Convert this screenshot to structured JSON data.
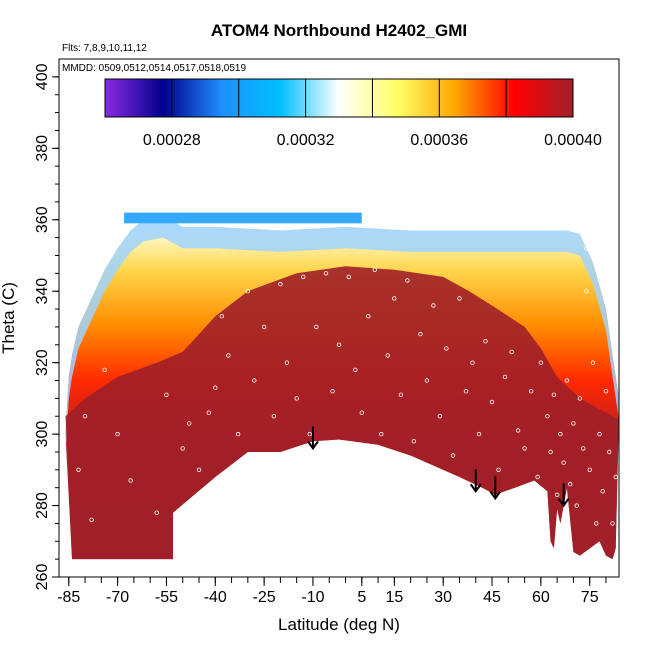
{
  "chart_data": {
    "type": "heatmap",
    "title": "ATOM4 Northbound H2402_GMI",
    "subtitle_lines": [
      "Flts: 7,8,9,10,11,12",
      "MMDD: 0509,0512,0514,0517,0518,0519"
    ],
    "xlabel": "Latitude (deg N)",
    "ylabel": "Theta (C)",
    "xlim": [
      -88,
      84
    ],
    "ylim": [
      260,
      405
    ],
    "x_ticks": [
      -85,
      -70,
      -55,
      -40,
      -25,
      -10,
      5,
      15,
      30,
      45,
      60,
      75
    ],
    "y_ticks": [
      260,
      280,
      300,
      320,
      340,
      360,
      380,
      400
    ],
    "colorbar": {
      "range": [
        0.00026,
        0.0004
      ],
      "tick_values": [
        0.00028,
        0.00032,
        0.00036,
        0.0004
      ],
      "tick_labels": [
        "0.00028",
        "0.00032",
        "0.00036",
        "0.00040"
      ],
      "colors": [
        "#8a2be2",
        "#00008b",
        "#1e90ff",
        "#00bfff",
        "#ffffff",
        "#ffff66",
        "#ffa500",
        "#ff0000",
        "#a0202a"
      ]
    },
    "field_top_theta": [
      [
        -86,
        300
      ],
      [
        -85,
        316
      ],
      [
        -84,
        322
      ],
      [
        -82,
        330
      ],
      [
        -78,
        338
      ],
      [
        -74,
        346
      ],
      [
        -70,
        352
      ],
      [
        -66,
        357
      ],
      [
        -62,
        360
      ],
      [
        -56,
        361
      ],
      [
        -50,
        358
      ],
      [
        -40,
        358
      ],
      [
        -20,
        357
      ],
      [
        0,
        358
      ],
      [
        20,
        357
      ],
      [
        40,
        357
      ],
      [
        55,
        357
      ],
      [
        68,
        357
      ],
      [
        72,
        356
      ],
      [
        76,
        348
      ],
      [
        80,
        335
      ],
      [
        82,
        322
      ],
      [
        84,
        310
      ]
    ],
    "field_bottom_theta": [
      [
        -84,
        265
      ],
      [
        -53,
        265
      ],
      [
        -53,
        278
      ],
      [
        -40,
        288
      ],
      [
        -30,
        295
      ],
      [
        -20,
        295
      ],
      [
        -10,
        298
      ],
      [
        -2,
        298.5
      ],
      [
        10,
        297
      ],
      [
        20,
        294
      ],
      [
        35,
        288
      ],
      [
        42,
        285
      ],
      [
        46,
        283
      ],
      [
        52,
        285
      ],
      [
        58,
        287
      ],
      [
        62,
        284
      ],
      [
        63,
        270
      ],
      [
        64,
        268
      ],
      [
        65,
        279
      ],
      [
        66,
        275
      ],
      [
        68,
        285
      ],
      [
        70,
        267
      ],
      [
        72,
        266
      ],
      [
        78,
        270
      ],
      [
        80,
        266
      ],
      [
        82,
        265
      ],
      [
        83,
        268
      ]
    ],
    "high_region_top_theta": [
      [
        -86,
        305
      ],
      [
        -80,
        310
      ],
      [
        -70,
        316
      ],
      [
        -58,
        320
      ],
      [
        -50,
        323
      ],
      [
        -45,
        328
      ],
      [
        -40,
        333
      ],
      [
        -30,
        340
      ],
      [
        -15,
        345
      ],
      [
        0,
        347
      ],
      [
        15,
        346
      ],
      [
        30,
        344
      ],
      [
        38,
        340
      ],
      [
        45,
        336
      ],
      [
        55,
        330
      ],
      [
        60,
        324
      ],
      [
        65,
        316
      ],
      [
        72,
        310
      ],
      [
        80,
        306
      ],
      [
        84,
        304
      ]
    ],
    "arrows_latitude": [
      -10,
      40,
      46,
      67
    ],
    "arrows_theta": [
      296,
      284,
      282,
      280
    ],
    "observation_points": [
      [
        -82,
        290
      ],
      [
        -80,
        305
      ],
      [
        -78,
        276
      ],
      [
        -74,
        318
      ],
      [
        -70,
        300
      ],
      [
        -66,
        287
      ],
      [
        -58,
        278
      ],
      [
        -55,
        311
      ],
      [
        -52,
        277
      ],
      [
        -50,
        296
      ],
      [
        -48,
        303
      ],
      [
        -45,
        290
      ],
      [
        -42,
        306
      ],
      [
        -40,
        313
      ],
      [
        -38,
        333
      ],
      [
        -36,
        322
      ],
      [
        -33,
        300
      ],
      [
        -30,
        340
      ],
      [
        -28,
        315
      ],
      [
        -25,
        330
      ],
      [
        -22,
        305
      ],
      [
        -20,
        342
      ],
      [
        -18,
        320
      ],
      [
        -15,
        310
      ],
      [
        -13,
        344
      ],
      [
        -11,
        300
      ],
      [
        -9,
        330
      ],
      [
        -6,
        345
      ],
      [
        -4,
        312
      ],
      [
        -2,
        325
      ],
      [
        1,
        344
      ],
      [
        3,
        318
      ],
      [
        5,
        306
      ],
      [
        7,
        333
      ],
      [
        9,
        346
      ],
      [
        11,
        300
      ],
      [
        13,
        322
      ],
      [
        15,
        338
      ],
      [
        17,
        311
      ],
      [
        19,
        343
      ],
      [
        21,
        298
      ],
      [
        23,
        328
      ],
      [
        25,
        315
      ],
      [
        27,
        336
      ],
      [
        29,
        305
      ],
      [
        31,
        324
      ],
      [
        33,
        294
      ],
      [
        35,
        338
      ],
      [
        37,
        312
      ],
      [
        39,
        320
      ],
      [
        41,
        300
      ],
      [
        43,
        326
      ],
      [
        45,
        309
      ],
      [
        47,
        290
      ],
      [
        49,
        316
      ],
      [
        51,
        323
      ],
      [
        53,
        301
      ],
      [
        55,
        296
      ],
      [
        57,
        312
      ],
      [
        59,
        288
      ],
      [
        60,
        320
      ],
      [
        62,
        305
      ],
      [
        63,
        295
      ],
      [
        64,
        311
      ],
      [
        65,
        283
      ],
      [
        66,
        300
      ],
      [
        67,
        292
      ],
      [
        68,
        315
      ],
      [
        69,
        286
      ],
      [
        70,
        303
      ],
      [
        71,
        280
      ],
      [
        72,
        310
      ],
      [
        73,
        296
      ],
      [
        74,
        340
      ],
      [
        74,
        352
      ],
      [
        75,
        290
      ],
      [
        76,
        320
      ],
      [
        77,
        275
      ],
      [
        78,
        300
      ],
      [
        79,
        284
      ],
      [
        80,
        312
      ],
      [
        81,
        295
      ],
      [
        82,
        275
      ],
      [
        83,
        288
      ]
    ]
  }
}
